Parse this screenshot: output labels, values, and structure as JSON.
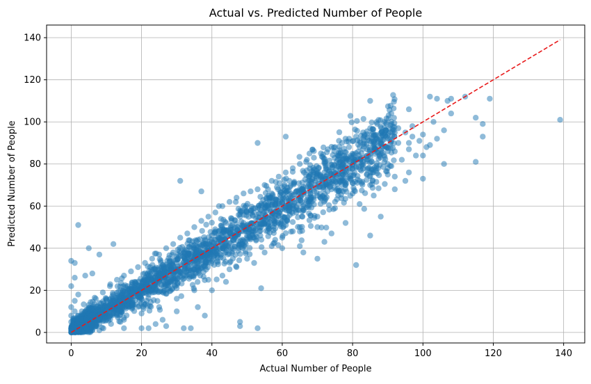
{
  "chart_data": {
    "type": "scatter",
    "title": "Actual vs. Predicted Number of People",
    "xlabel": "Actual Number of People",
    "ylabel": "Predicted Number of People",
    "xlim": [
      -7,
      146
    ],
    "ylim": [
      -5,
      146
    ],
    "xticks": [
      "0",
      "20",
      "40",
      "60",
      "80",
      "100",
      "120",
      "140"
    ],
    "yticks": [
      "0",
      "20",
      "40",
      "60",
      "80",
      "100",
      "120",
      "140"
    ],
    "grid": true,
    "colors": {
      "points": "#1f77b4",
      "reference_line": "#e8191a",
      "grid": "#b0b0b0"
    },
    "reference_line": {
      "style": "dashed",
      "x": [
        0,
        139
      ],
      "y": [
        0,
        139
      ]
    },
    "series": [
      {
        "points": [
          [
            0,
            34
          ],
          [
            1,
            33
          ],
          [
            2,
            51
          ],
          [
            5,
            40
          ],
          [
            0,
            22
          ],
          [
            1,
            26
          ],
          [
            4,
            27
          ],
          [
            6,
            28
          ],
          [
            8,
            37
          ],
          [
            12,
            42
          ],
          [
            31,
            72
          ],
          [
            37,
            67
          ],
          [
            42,
            60
          ],
          [
            53,
            90
          ],
          [
            61,
            93
          ],
          [
            85,
            110
          ],
          [
            91,
            104
          ],
          [
            96,
            106
          ],
          [
            102,
            112
          ],
          [
            104,
            111
          ],
          [
            107,
            110
          ],
          [
            108,
            111
          ],
          [
            112,
            112
          ],
          [
            119,
            111
          ],
          [
            115,
            102
          ],
          [
            117,
            99
          ],
          [
            117,
            93
          ],
          [
            139,
            101
          ],
          [
            115,
            81
          ],
          [
            106,
            80
          ],
          [
            100,
            73
          ],
          [
            95,
            72
          ],
          [
            92,
            68
          ],
          [
            88,
            55
          ],
          [
            85,
            46
          ],
          [
            81,
            32
          ],
          [
            75,
            59
          ],
          [
            70,
            50
          ],
          [
            65,
            41
          ],
          [
            57,
            41
          ],
          [
            54,
            21
          ],
          [
            53,
            2
          ],
          [
            48,
            5
          ],
          [
            48,
            3
          ],
          [
            44,
            24
          ],
          [
            38,
            8
          ],
          [
            34,
            2
          ],
          [
            32,
            2
          ],
          [
            24,
            4
          ],
          [
            22,
            2
          ],
          [
            20,
            2
          ],
          [
            14,
            5
          ],
          [
            10,
            6
          ],
          [
            6,
            5
          ],
          [
            3,
            4
          ],
          [
            8,
            1
          ],
          [
            15,
            2
          ],
          [
            27,
            3
          ],
          [
            30,
            10
          ],
          [
            26,
            6
          ],
          [
            36,
            12
          ],
          [
            40,
            20
          ],
          [
            52,
            33
          ],
          [
            60,
            40
          ],
          [
            66,
            38
          ],
          [
            70,
            35
          ],
          [
            72,
            43
          ],
          [
            74,
            47
          ],
          [
            78,
            52
          ],
          [
            82,
            61
          ],
          [
            86,
            65
          ],
          [
            92,
            74
          ],
          [
            96,
            76
          ],
          [
            102,
            89
          ],
          [
            104,
            92
          ],
          [
            106,
            96
          ],
          [
            108,
            104
          ],
          [
            100,
            84
          ],
          [
            96,
            87
          ],
          [
            90,
            80
          ],
          [
            84,
            75
          ],
          [
            80,
            71
          ],
          [
            76,
            67
          ],
          [
            72,
            64
          ],
          [
            68,
            62
          ],
          [
            64,
            57
          ],
          [
            60,
            53
          ],
          [
            56,
            50
          ],
          [
            52,
            45
          ],
          [
            48,
            42
          ],
          [
            44,
            38
          ],
          [
            40,
            34
          ],
          [
            36,
            31
          ],
          [
            32,
            27
          ],
          [
            28,
            24
          ],
          [
            24,
            20
          ],
          [
            20,
            16
          ],
          [
            16,
            13
          ],
          [
            12,
            9
          ],
          [
            8,
            6
          ],
          [
            4,
            3
          ],
          [
            2,
            1
          ],
          [
            1,
            0
          ],
          [
            0,
            0
          ],
          [
            0,
            2
          ],
          [
            0,
            5
          ],
          [
            0,
            8
          ],
          [
            0,
            12
          ],
          [
            1,
            15
          ],
          [
            2,
            18
          ],
          [
            3,
            10
          ],
          [
            5,
            13
          ],
          [
            7,
            16
          ],
          [
            9,
            19
          ],
          [
            11,
            22
          ],
          [
            13,
            25
          ],
          [
            15,
            27
          ],
          [
            17,
            29
          ],
          [
            19,
            31
          ],
          [
            21,
            33
          ],
          [
            23,
            35
          ],
          [
            25,
            37
          ],
          [
            27,
            40
          ],
          [
            29,
            42
          ],
          [
            31,
            45
          ],
          [
            33,
            47
          ],
          [
            35,
            50
          ],
          [
            37,
            53
          ],
          [
            39,
            55
          ],
          [
            41,
            57
          ],
          [
            43,
            60
          ],
          [
            45,
            62
          ],
          [
            47,
            64
          ],
          [
            49,
            66
          ],
          [
            51,
            67
          ],
          [
            53,
            68
          ],
          [
            55,
            70
          ],
          [
            57,
            72
          ],
          [
            59,
            74
          ],
          [
            61,
            76
          ],
          [
            63,
            78
          ],
          [
            65,
            80
          ],
          [
            67,
            82
          ],
          [
            69,
            83
          ],
          [
            71,
            85
          ],
          [
            73,
            87
          ],
          [
            75,
            88
          ],
          [
            77,
            90
          ],
          [
            79,
            92
          ],
          [
            81,
            93
          ],
          [
            83,
            95
          ],
          [
            85,
            97
          ],
          [
            87,
            99
          ],
          [
            89,
            100
          ],
          [
            91,
            99
          ],
          [
            93,
            97
          ],
          [
            95,
            95
          ],
          [
            97,
            93
          ],
          [
            99,
            91
          ],
          [
            101,
            88
          ],
          [
            20,
            22
          ],
          [
            22,
            18
          ],
          [
            25,
            28
          ],
          [
            28,
            30
          ],
          [
            30,
            25
          ],
          [
            33,
            36
          ],
          [
            35,
            32
          ],
          [
            38,
            41
          ],
          [
            41,
            44
          ],
          [
            43,
            40
          ],
          [
            46,
            49
          ],
          [
            49,
            52
          ],
          [
            51,
            48
          ],
          [
            54,
            58
          ],
          [
            56,
            54
          ],
          [
            58,
            61
          ],
          [
            61,
            64
          ],
          [
            63,
            60
          ],
          [
            66,
            69
          ],
          [
            68,
            66
          ],
          [
            71,
            74
          ],
          [
            73,
            70
          ],
          [
            76,
            79
          ],
          [
            78,
            75
          ],
          [
            80,
            83
          ],
          [
            83,
            80
          ],
          [
            86,
            88
          ],
          [
            88,
            85
          ],
          [
            90,
            92
          ],
          [
            93,
            90
          ],
          [
            10,
            12
          ],
          [
            11,
            8
          ],
          [
            13,
            15
          ],
          [
            14,
            11
          ],
          [
            16,
            18
          ],
          [
            17,
            14
          ],
          [
            18,
            21
          ],
          [
            19,
            17
          ],
          [
            21,
            24
          ],
          [
            23,
            19
          ],
          [
            6,
            9
          ],
          [
            7,
            4
          ],
          [
            9,
            11
          ],
          [
            4,
            8
          ],
          [
            3,
            6
          ],
          [
            2,
            4
          ],
          [
            5,
            2
          ],
          [
            6,
            1
          ],
          [
            7,
            3
          ],
          [
            1,
            10
          ],
          [
            42,
            48
          ],
          [
            44,
            52
          ],
          [
            46,
            44
          ],
          [
            48,
            55
          ],
          [
            50,
            46
          ],
          [
            52,
            57
          ],
          [
            54,
            50
          ],
          [
            56,
            60
          ],
          [
            58,
            52
          ],
          [
            60,
            63
          ],
          [
            62,
            58
          ],
          [
            64,
            67
          ],
          [
            66,
            60
          ],
          [
            68,
            72
          ],
          [
            70,
            65
          ],
          [
            72,
            76
          ],
          [
            74,
            68
          ],
          [
            76,
            80
          ],
          [
            78,
            70
          ],
          [
            80,
            78
          ],
          [
            82,
            72
          ],
          [
            84,
            82
          ],
          [
            86,
            76
          ],
          [
            88,
            90
          ],
          [
            90,
            78
          ],
          [
            92,
            86
          ],
          [
            94,
            82
          ],
          [
            96,
            90
          ],
          [
            98,
            84
          ],
          [
            100,
            94
          ],
          [
            34,
            40
          ],
          [
            36,
            44
          ],
          [
            38,
            36
          ],
          [
            40,
            46
          ],
          [
            26,
            32
          ],
          [
            28,
            34
          ],
          [
            30,
            36
          ],
          [
            32,
            38
          ],
          [
            24,
            30
          ],
          [
            22,
            27
          ],
          [
            18,
            24
          ],
          [
            16,
            22
          ],
          [
            14,
            20
          ],
          [
            12,
            18
          ],
          [
            10,
            16
          ],
          [
            8,
            14
          ],
          [
            6,
            12
          ],
          [
            4,
            10
          ],
          [
            2,
            8
          ],
          [
            1,
            6
          ],
          [
            45,
            30
          ],
          [
            50,
            35
          ],
          [
            55,
            38
          ],
          [
            60,
            45
          ],
          [
            65,
            50
          ],
          [
            70,
            55
          ],
          [
            75,
            62
          ],
          [
            80,
            66
          ],
          [
            85,
            70
          ],
          [
            90,
            75
          ],
          [
            39,
            25
          ],
          [
            35,
            20
          ],
          [
            30,
            16
          ],
          [
            25,
            12
          ],
          [
            20,
            9
          ],
          [
            15,
            6
          ],
          [
            43,
            27
          ],
          [
            47,
            31
          ],
          [
            58,
            44
          ],
          [
            63,
            48
          ],
          [
            57,
            66
          ],
          [
            62,
            72
          ],
          [
            67,
            77
          ],
          [
            72,
            81
          ],
          [
            77,
            84
          ],
          [
            82,
            88
          ],
          [
            87,
            92
          ],
          [
            92,
            95
          ],
          [
            97,
            98
          ],
          [
            103,
            100
          ]
        ]
      }
    ]
  }
}
